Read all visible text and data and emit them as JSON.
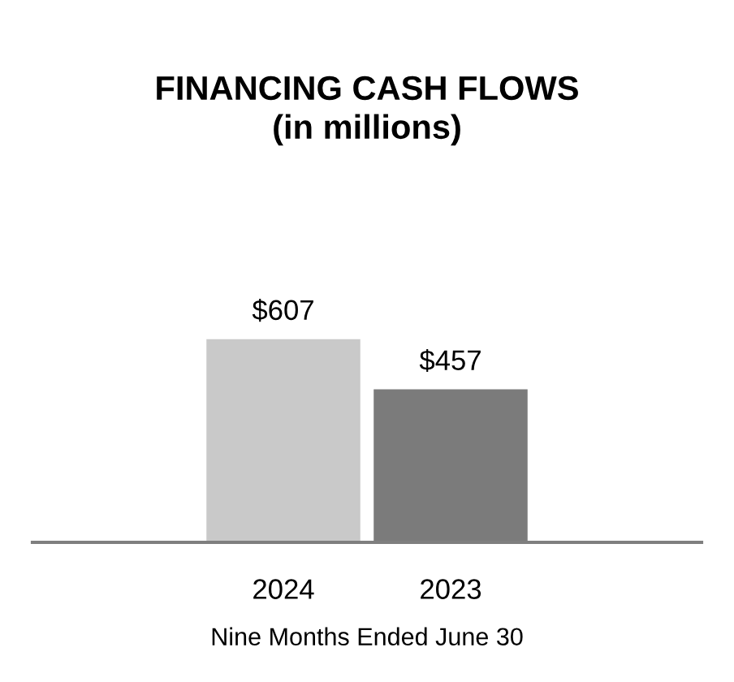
{
  "chart_data": {
    "type": "bar",
    "title": "FINANCING CASH FLOWS\n(in millions)",
    "xlabel": "Nine Months Ended June 30",
    "categories": [
      "2024",
      "2023"
    ],
    "values": [
      607,
      457
    ],
    "colors": [
      "#c9c9c9",
      "#7b7b7b"
    ],
    "value_labels": [
      "$607",
      "$457"
    ],
    "grid": false,
    "legend": false
  }
}
